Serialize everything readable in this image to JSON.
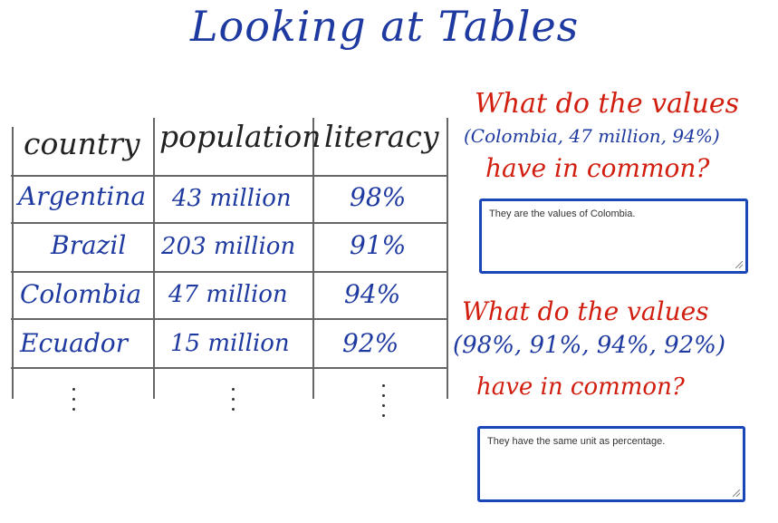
{
  "title": "Looking at Tables",
  "table": {
    "headers": [
      "country",
      "population",
      "literacy"
    ],
    "rows": [
      {
        "country": "Argentina",
        "population": "43 million",
        "literacy": "98%"
      },
      {
        "country": "Brazil",
        "population": "203 million",
        "literacy": "91%"
      },
      {
        "country": "Colombia",
        "population": "47 million",
        "literacy": "94%"
      },
      {
        "country": "Ecuador",
        "population": "15 million",
        "literacy": "92%"
      }
    ]
  },
  "questions": [
    {
      "lines": [
        "What do the values",
        "(Colombia, 47 million, 94%)",
        "have in common?"
      ],
      "answer": "They are the values of Colombia."
    },
    {
      "lines": [
        "What do the values",
        "(98%, 91%, 94%, 92%)",
        "have in common?"
      ],
      "answer": "They have the same unit as percentage."
    }
  ],
  "colors": {
    "ink_blue": "#1e3aa0",
    "ink_red": "#d11e0f",
    "box_border": "#1a47b8"
  }
}
